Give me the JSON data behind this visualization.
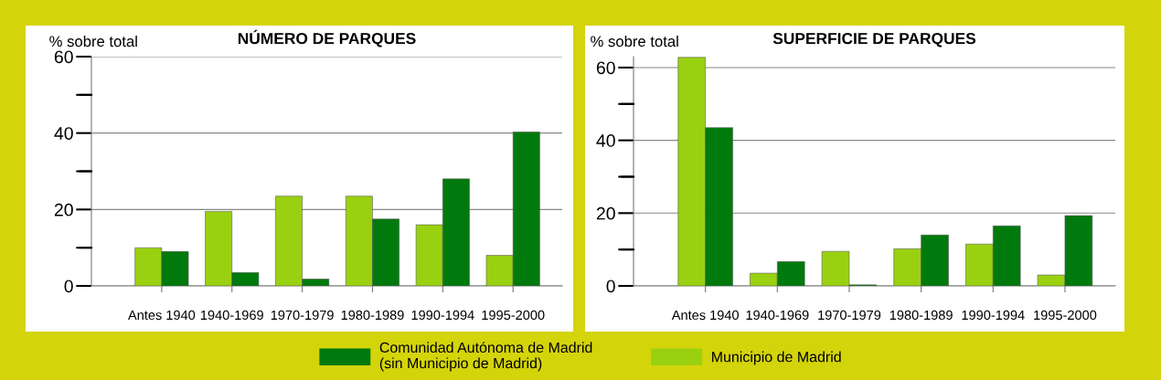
{
  "chart_data": [
    {
      "type": "bar",
      "title": "NÚMERO DE PARQUES",
      "ylabel": "% sobre total",
      "categories": [
        "Antes 1940",
        "1940-1969",
        "1970-1979",
        "1980-1989",
        "1990-1994",
        "1995-2000"
      ],
      "series": [
        {
          "name": "Municipio de Madrid",
          "color": "#99d111",
          "values": [
            10,
            19.5,
            23.5,
            23.5,
            16,
            8
          ]
        },
        {
          "name": "Comunidad Autónoma de Madrid\n(sin Municipio de Madrid)",
          "color": "#007a0d",
          "values": [
            9,
            3.5,
            1.8,
            17.5,
            28,
            40.3
          ]
        }
      ],
      "ylim": [
        0,
        60
      ],
      "yticks": [
        0,
        {
          "value": 10,
          "label": null
        },
        20,
        {
          "value": 30,
          "label": null
        },
        40,
        {
          "value": 50,
          "label": null
        },
        60
      ],
      "grid": "y",
      "legend": "bottom"
    },
    {
      "type": "bar",
      "title": "SUPERFICIE DE PARQUES",
      "ylabel": "% sobre total",
      "categories": [
        "Antes 1940",
        "1940-1969",
        "1970-1979",
        "1980-1989",
        "1990-1994",
        "1995-2000"
      ],
      "series": [
        {
          "color": "#99d111",
          "values": [
            62.8,
            3.5,
            9.5,
            10.2,
            11.5,
            3
          ]
        },
        {
          "color": "#007a0d",
          "values": [
            43.5,
            6.7,
            0.3,
            14,
            16.5,
            19.3
          ]
        }
      ],
      "ylim": [
        0,
        63
      ],
      "yticks": [
        0,
        {
          "value": 10,
          "label": null
        },
        20,
        {
          "value": 30,
          "label": null
        },
        40,
        {
          "value": 50,
          "label": null
        },
        60
      ],
      "grid": "y"
    }
  ]
}
